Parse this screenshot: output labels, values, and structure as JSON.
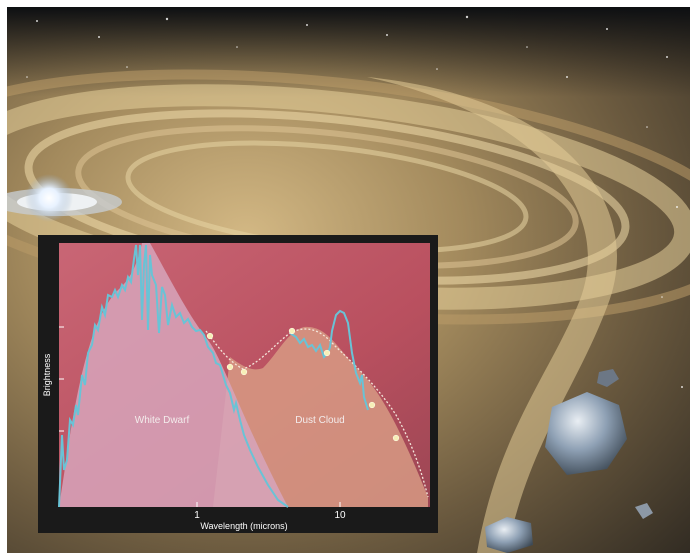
{
  "chart_data": {
    "type": "line",
    "xlabel": "Wavelength (microns)",
    "ylabel": "Brightness",
    "x_ticks": [
      "1",
      "10"
    ],
    "x_scale": "log",
    "regions": [
      "White Dwarf",
      "Dust Cloud"
    ],
    "colors": {
      "background": "#c25a6a",
      "white_dwarf_fill": "#d7a4bb",
      "dust_fill": "#d79a84",
      "spectrum_line": "#69c3d6",
      "model_line": "#f4e7dc",
      "data_points": "#f6efb8"
    }
  }
}
